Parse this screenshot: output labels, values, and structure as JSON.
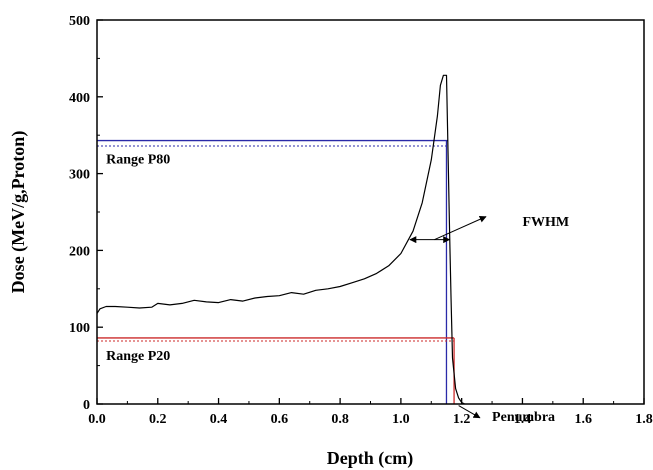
{
  "chart_data": {
    "type": "line",
    "title": "",
    "xlabel": "Depth (cm)",
    "ylabel": "Dose (MeV/g,Proton)",
    "xlim": [
      0.0,
      1.8
    ],
    "ylim": [
      0,
      500
    ],
    "xticks": [
      0.0,
      0.2,
      0.4,
      0.6,
      0.8,
      1.0,
      1.2,
      1.4,
      1.6,
      1.8
    ],
    "xtick_labels": [
      "0.0",
      "0.2",
      "0.4",
      "0.6",
      "0.8",
      "1.0",
      "1.2",
      "1.4",
      "1.6",
      "1.8"
    ],
    "yticks": [
      0,
      100,
      200,
      300,
      400,
      500
    ],
    "ytick_labels": [
      "0",
      "100",
      "200",
      "300",
      "400",
      "500"
    ],
    "grid": false,
    "series": [
      {
        "color": "#000000",
        "x": [
          0.0,
          0.01,
          0.03,
          0.06,
          0.1,
          0.14,
          0.18,
          0.2,
          0.24,
          0.28,
          0.32,
          0.36,
          0.4,
          0.44,
          0.48,
          0.52,
          0.56,
          0.6,
          0.64,
          0.68,
          0.72,
          0.76,
          0.8,
          0.84,
          0.88,
          0.92,
          0.96,
          1.0,
          1.04,
          1.07,
          1.1,
          1.12,
          1.13,
          1.14,
          1.15,
          1.155,
          1.16,
          1.165,
          1.17,
          1.18,
          1.19,
          1.2,
          1.21
        ],
        "y": [
          118,
          124,
          127,
          127,
          126,
          125,
          126,
          131,
          129,
          131,
          135,
          133,
          132,
          136,
          134,
          138,
          140,
          141,
          145,
          143,
          148,
          150,
          153,
          158,
          163,
          170,
          180,
          196,
          225,
          262,
          318,
          375,
          415,
          428,
          428,
          330,
          230,
          140,
          60,
          20,
          8,
          2,
          0
        ]
      }
    ],
    "reference_lines": [
      {
        "color": "#2a2aa8",
        "orientation": "horizontal",
        "y": 343,
        "x_range": [
          0.0,
          1.155
        ]
      },
      {
        "color": "#2a2aa8",
        "orientation": "horizontal",
        "y": 336,
        "x_range": [
          0.0,
          1.155
        ],
        "style": "dotted"
      },
      {
        "color": "#2a2aa8",
        "orientation": "vertical",
        "x": 1.15,
        "y_range": [
          0,
          343
        ]
      },
      {
        "color": "#cc2a2a",
        "orientation": "horizontal",
        "y": 86,
        "x_range": [
          0.0,
          1.175
        ]
      },
      {
        "color": "#cc2a2a",
        "orientation": "horizontal",
        "y": 82,
        "x_range": [
          0.0,
          1.175
        ],
        "style": "dotted"
      },
      {
        "color": "#cc2a2a",
        "orientation": "vertical",
        "x": 1.175,
        "y_range": [
          0,
          86
        ]
      }
    ],
    "annotations": [
      {
        "text": "Range P80",
        "x": 0.03,
        "y": 313
      },
      {
        "text": "Range P20",
        "x": 0.03,
        "y": 57
      },
      {
        "text": "FWHM",
        "x": 1.4,
        "y": 232
      },
      {
        "text": "Penumbra",
        "x": 1.3,
        "y": -22
      }
    ],
    "fwhm": {
      "left": [
        1.03,
        214
      ],
      "right": [
        1.16,
        214
      ],
      "pointer_to": [
        1.28,
        244
      ]
    },
    "penumbra_arrow": {
      "from": [
        1.19,
        -2
      ],
      "to": [
        1.26,
        -18
      ]
    }
  }
}
